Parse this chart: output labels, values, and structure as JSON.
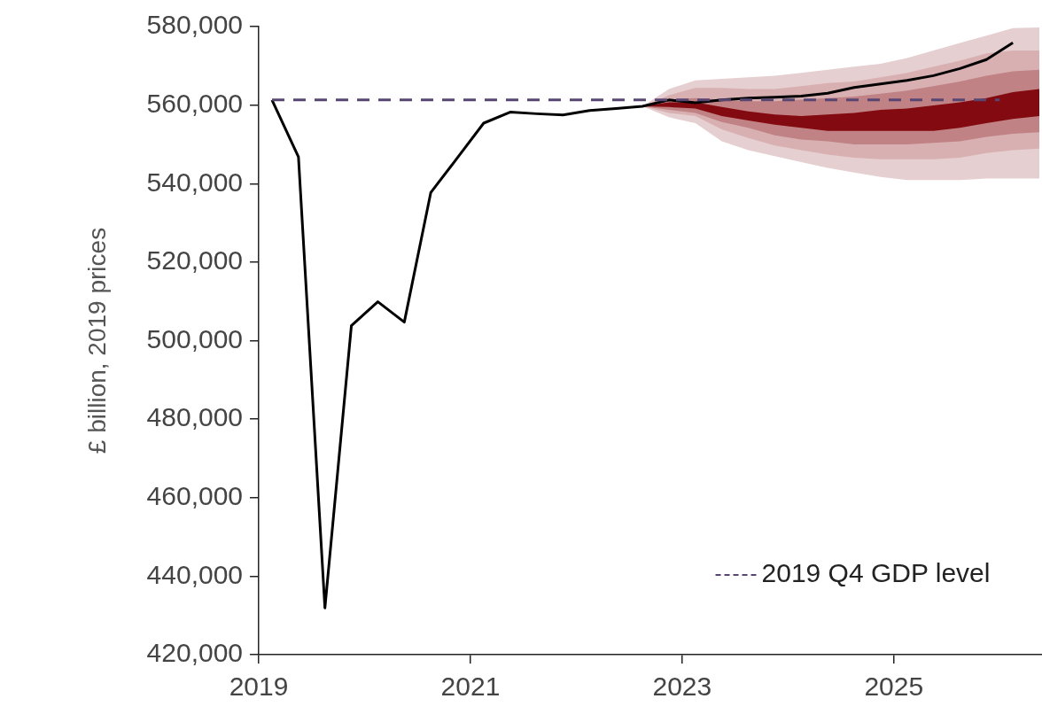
{
  "chart_data": {
    "type": "line",
    "ylabel": "£ billion, 2019 prices",
    "xlim": [
      2019,
      2026.4
    ],
    "xticks": [
      2019,
      2021,
      2023,
      2025
    ],
    "ylim": [
      420000,
      580000
    ],
    "yticks": [
      {
        "value": 420000,
        "label": "420,000"
      },
      {
        "value": 440000,
        "label": "440,000"
      },
      {
        "value": 460000,
        "label": "460,000"
      },
      {
        "value": 480000,
        "label": "480,000"
      },
      {
        "value": 500000,
        "label": "500,000"
      },
      {
        "value": 520000,
        "label": "520,000"
      },
      {
        "value": 540000,
        "label": "540,000"
      },
      {
        "value": 560000,
        "label": "560,000"
      },
      {
        "value": 580000,
        "label": "580,000"
      }
    ],
    "grid": false,
    "legend": "bottom right",
    "marker": "none",
    "series": [
      {
        "color": "#e6cfd0",
        "x": [
          2022.625,
          2022.875,
          2023.125,
          2023.375,
          2023.625,
          2023.875,
          2024.125,
          2024.375,
          2024.625,
          2024.875,
          2025.125,
          2025.375,
          2025.625,
          2025.875,
          2026.125,
          2026.375
        ],
        "values": [
          null,
          null,
          null,
          null,
          null,
          null,
          null,
          null,
          null,
          null,
          null,
          null,
          null,
          null,
          null,
          null
        ],
        "upper": [
          559700,
          564100,
          566300,
          566700,
          567100,
          567500,
          568200,
          569000,
          569800,
          570500,
          572000,
          573900,
          575800,
          577700,
          579600,
          579800
        ],
        "lower": [
          559700,
          556900,
          555400,
          550800,
          548500,
          547000,
          545500,
          544000,
          542800,
          541700,
          540900,
          540900,
          540900,
          541300,
          541300,
          541300
        ]
      },
      {
        "color": "#d8b0b2",
        "x": [
          2022.625,
          2022.875,
          2023.125,
          2023.375,
          2023.625,
          2023.875,
          2024.125,
          2024.375,
          2024.625,
          2024.875,
          2025.125,
          2025.375,
          2025.625,
          2025.875,
          2026.125,
          2026.375
        ],
        "values": [
          null,
          null,
          null,
          null,
          null,
          null,
          null,
          null,
          null,
          null,
          null,
          null,
          null,
          null,
          null,
          null
        ],
        "upper": [
          559700,
          562500,
          564400,
          564400,
          564100,
          564100,
          564800,
          565600,
          566000,
          567100,
          568200,
          569800,
          571300,
          573200,
          573900,
          573900
        ],
        "lower": [
          559700,
          558000,
          557200,
          553800,
          551600,
          549700,
          548500,
          547400,
          546600,
          546200,
          546200,
          546200,
          546600,
          547800,
          548500,
          548900
        ]
      },
      {
        "color": "#c08284",
        "x": [
          2022.625,
          2022.875,
          2023.125,
          2023.375,
          2023.625,
          2023.875,
          2024.125,
          2024.375,
          2024.625,
          2024.875,
          2025.125,
          2025.375,
          2025.625,
          2025.875,
          2026.125,
          2026.375
        ],
        "values": [
          null,
          null,
          null,
          null,
          null,
          null,
          null,
          null,
          null,
          null,
          null,
          null,
          null,
          null,
          null,
          null
        ],
        "upper": [
          559700,
          561400,
          561800,
          561400,
          561000,
          561000,
          561400,
          561800,
          562200,
          562900,
          563700,
          564800,
          566000,
          567500,
          568600,
          569000
        ],
        "lower": [
          559700,
          558800,
          558000,
          555700,
          554200,
          552300,
          551200,
          550800,
          550000,
          550000,
          550000,
          550400,
          550800,
          551900,
          552700,
          553100
        ]
      },
      {
        "color": "#820a10",
        "x": [
          2022.625,
          2022.875,
          2023.125,
          2023.375,
          2023.625,
          2023.875,
          2024.125,
          2024.375,
          2024.625,
          2024.875,
          2025.125,
          2025.375,
          2025.625,
          2025.875,
          2026.125,
          2026.375
        ],
        "values": [
          null,
          null,
          null,
          null,
          null,
          null,
          null,
          null,
          null,
          null,
          null,
          null,
          null,
          null,
          null,
          null
        ],
        "upper": [
          559700,
          560700,
          560700,
          559500,
          558400,
          557600,
          557200,
          557600,
          558000,
          558800,
          559100,
          559900,
          560700,
          561800,
          563300,
          564100
        ],
        "lower": [
          559700,
          559500,
          559100,
          557200,
          556100,
          555000,
          554200,
          553400,
          553400,
          553400,
          553400,
          553400,
          554200,
          555400,
          556500,
          557200
        ]
      },
      {
        "color": "#000000",
        "x": [
          2019.125,
          2019.375,
          2019.625,
          2019.875,
          2020.125,
          2020.375,
          2020.625,
          2020.875,
          2021.125,
          2021.375,
          2021.625,
          2021.875,
          2022.125,
          2022.375,
          2022.625,
          2022.875,
          2023.125,
          2023.375,
          2023.625,
          2023.875,
          2024.125,
          2024.375,
          2024.625,
          2024.875,
          2025.125,
          2025.375,
          2025.625,
          2025.875,
          2026.125
        ],
        "values": [
          561300,
          546800,
          431900,
          503800,
          509900,
          504700,
          537700,
          546500,
          555400,
          558200,
          557800,
          557500,
          558600,
          559100,
          559700,
          561300,
          560600,
          561300,
          561800,
          562000,
          562300,
          563000,
          564500,
          565400,
          566300,
          567500,
          569300,
          571600,
          575900
        ]
      },
      {
        "name": "2019 Q4 GDP level",
        "color": "#574672",
        "line_style": "dashed",
        "x": [
          2019.125,
          2026.0
        ],
        "values": [
          561300,
          561300
        ]
      }
    ]
  }
}
